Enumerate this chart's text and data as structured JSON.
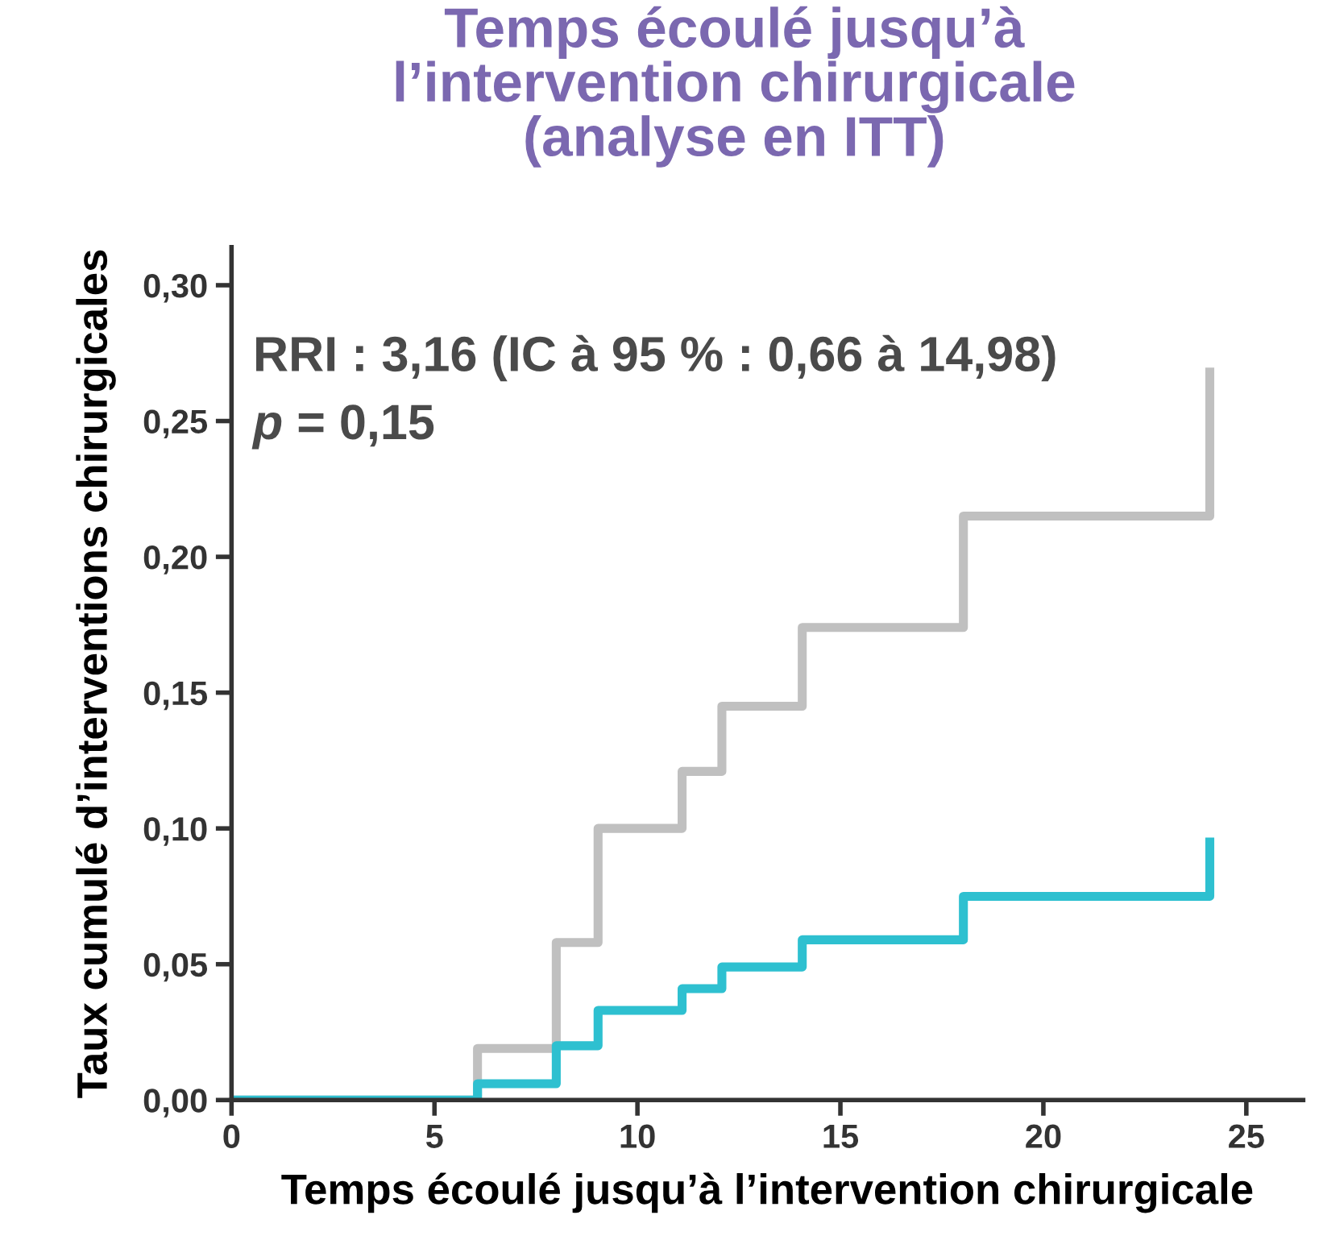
{
  "chart_data": {
    "type": "step",
    "title": "Temps écoulé jusqu’à\nl’intervention chirurgicale\n(analyse en ITT)",
    "xlabel": "Temps écoulé jusqu’à l’intervention chirurgicale",
    "ylabel": "Taux cumulé d’interventions chirurgicales",
    "annotations": [
      "RRI : 3,16 (IC à 95 % : 0,66 à 14,98)",
      "p = 0,15"
    ],
    "x": [
      0,
      6.06,
      8.0,
      9.03,
      11.1,
      12.08,
      14.06,
      18.03,
      24.1
    ],
    "series": [
      {
        "color": "#c0c0c0",
        "values": [
          0,
          0.019,
          0.058,
          0.1,
          0.121,
          0.145,
          0.174,
          0.215,
          0.268
        ]
      },
      {
        "color": "#2ec0d0",
        "values": [
          0,
          0.006,
          0.02,
          0.033,
          0.041,
          0.049,
          0.059,
          0.075,
          0.095
        ]
      }
    ],
    "xlim": [
      0,
      26.4
    ],
    "xticks": [
      0,
      5,
      10,
      15,
      20,
      25
    ],
    "ylim": [
      0,
      0.314
    ],
    "yticks": [
      {
        "value": 0,
        "label": "0,00"
      },
      {
        "value": 0.05,
        "label": "0,05"
      },
      {
        "value": 0.1,
        "label": "0,10"
      },
      {
        "value": 0.15,
        "label": "0,15"
      },
      {
        "value": 0.2,
        "label": "0,20"
      },
      {
        "value": 0.25,
        "label": "0,25"
      },
      {
        "value": 0.3,
        "label": "0,30"
      }
    ],
    "grid": false,
    "legend": false
  }
}
